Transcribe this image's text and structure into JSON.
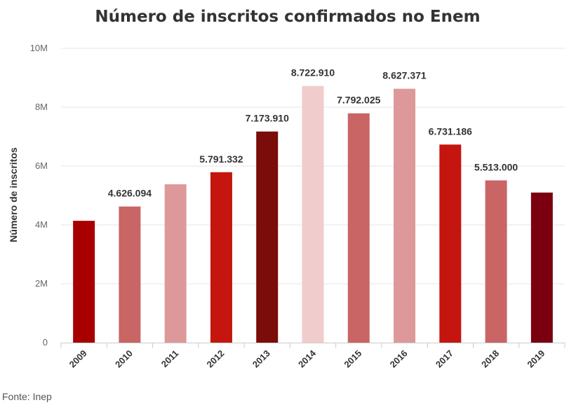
{
  "chart_data": {
    "type": "bar",
    "title": "Número de inscritos confirmados no Enem",
    "xlabel": "",
    "ylabel": "Número de inscritos",
    "ylim": [
      0,
      10000000
    ],
    "yticks": [
      0,
      2000000,
      4000000,
      6000000,
      8000000,
      10000000
    ],
    "ytick_labels": [
      "0",
      "2M",
      "4M",
      "6M",
      "8M",
      "10M"
    ],
    "grid": true,
    "categories": [
      "2009",
      "2010",
      "2011",
      "2012",
      "2013",
      "2014",
      "2015",
      "2016",
      "2017",
      "2018",
      "2019"
    ],
    "values": [
      4140000,
      4626094,
      5380000,
      5791332,
      7173910,
      8722910,
      7792025,
      8627371,
      6731186,
      5513000,
      5100000
    ],
    "data_labels": [
      "",
      "4.626.094",
      "",
      "5.791.332",
      "7.173.910",
      "8.722.910",
      "7.792.025",
      "8.627.371",
      "6.731.186",
      "5.513.000",
      ""
    ],
    "colors": [
      "#a80000",
      "#c96565",
      "#dd9999",
      "#c4160e",
      "#7a0c09",
      "#f0cccc",
      "#c96565",
      "#dd9999",
      "#c4160e",
      "#c96565",
      "#7a0010"
    ]
  },
  "source": "Fonte: Inep"
}
